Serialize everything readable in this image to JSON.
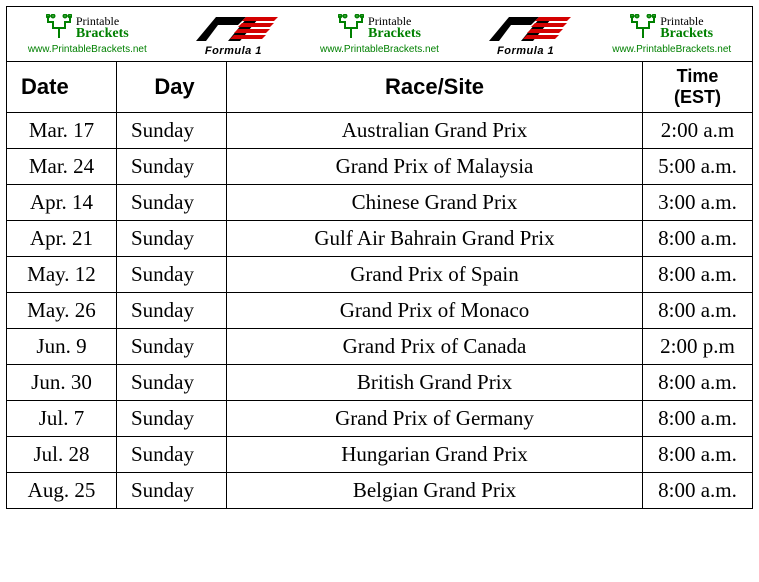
{
  "logos": {
    "printable_brackets": {
      "line1": "Printable",
      "line2": "Brackets",
      "url": "www.PrintableBrackets.net"
    },
    "f1": {
      "label": "Formula 1"
    }
  },
  "table": {
    "headers": {
      "date": "Date",
      "day": "Day",
      "race": "Race/Site",
      "time": "Time (EST)"
    },
    "rows": [
      {
        "date": "Mar. 17",
        "day": "Sunday",
        "race": "Australian Grand Prix",
        "time": "2:00 a.m"
      },
      {
        "date": "Mar. 24",
        "day": "Sunday",
        "race": "Grand Prix of Malaysia",
        "time": "5:00 a.m."
      },
      {
        "date": "Apr. 14",
        "day": "Sunday",
        "race": "Chinese Grand Prix",
        "time": "3:00 a.m."
      },
      {
        "date": "Apr. 21",
        "day": "Sunday",
        "race": "Gulf Air Bahrain Grand Prix",
        "time": "8:00 a.m."
      },
      {
        "date": "May. 12",
        "day": "Sunday",
        "race": "Grand Prix of Spain",
        "time": "8:00 a.m."
      },
      {
        "date": "May. 26",
        "day": "Sunday",
        "race": "Grand Prix of Monaco",
        "time": "8:00 a.m."
      },
      {
        "date": "Jun. 9",
        "day": "Sunday",
        "race": "Grand Prix of Canada",
        "time": "2:00 p.m"
      },
      {
        "date": "Jun. 30",
        "day": "Sunday",
        "race": "British Grand Prix",
        "time": "8:00 a.m."
      },
      {
        "date": "Jul. 7",
        "day": "Sunday",
        "race": "Grand Prix of Germany",
        "time": "8:00 a.m."
      },
      {
        "date": "Jul. 28",
        "day": "Sunday",
        "race": "Hungarian Grand Prix",
        "time": "8:00 a.m."
      },
      {
        "date": "Aug. 25",
        "day": "Sunday",
        "race": "Belgian Grand Prix",
        "time": "8:00 a.m."
      }
    ]
  }
}
